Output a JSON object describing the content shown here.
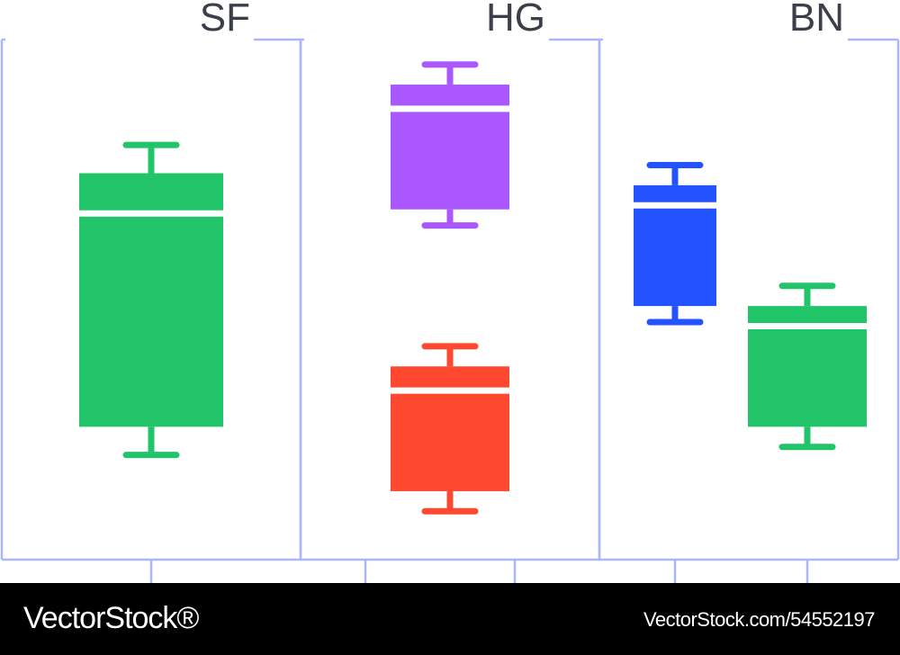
{
  "chart_data": {
    "type": "box",
    "panels": [
      {
        "title": "SF",
        "boxes": [
          {
            "color": "#22c46a",
            "whisker_low": 26,
            "q1": 33,
            "median": 86,
            "q3": 96,
            "whisker_high": 103
          }
        ]
      },
      {
        "title": "HG",
        "boxes": [
          {
            "color": "#aa57ff",
            "whisker_low": 83,
            "q1": 87,
            "median": 112,
            "q3": 118,
            "whisker_high": 123
          },
          {
            "color": "#ff4830",
            "whisker_low": 12,
            "q1": 17,
            "median": 42,
            "q3": 48,
            "whisker_high": 53
          }
        ]
      },
      {
        "title": "BN",
        "boxes": [
          {
            "color": "#2353ff",
            "whisker_low": 59,
            "q1": 63,
            "median": 88,
            "q3": 93,
            "whisker_high": 98
          },
          {
            "color": "#22c46a",
            "whisker_low": 28,
            "q1": 33,
            "median": 58,
            "q3": 63,
            "whisker_high": 68
          }
        ]
      }
    ],
    "ylim": [
      0,
      135
    ],
    "grid": false,
    "frame_color": "#aab7ff"
  },
  "footer": {
    "brand": "VectorStock®",
    "image_id": "VectorStock.com/54552197"
  }
}
